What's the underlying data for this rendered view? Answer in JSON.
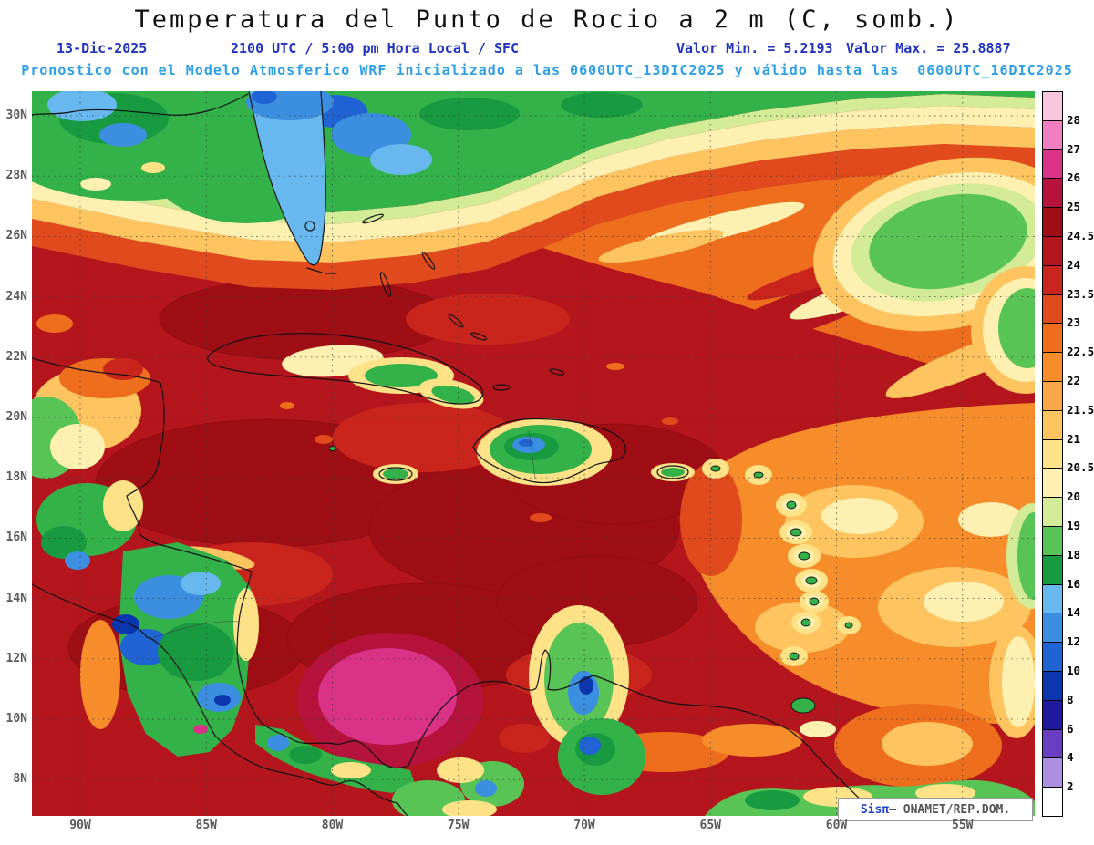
{
  "header": {
    "title": "Temperatura del Punto de Rocio a 2 m (C, somb.)",
    "line2": {
      "date": "13-Dic-2025",
      "time": "2100 UTC / 5:00 pm Hora Local / SFC",
      "min": "Valor Min. = 5.2193",
      "max": "Valor Max. = 25.8887"
    },
    "line3": "Pronostico con el Modelo Atmosferico WRF inicializado a las 0600UTC_13DIC2025 y válido hasta las  0600UTC_16DIC2025"
  },
  "axes": {
    "lat_labels": [
      "30N",
      "28N",
      "26N",
      "24N",
      "22N",
      "20N",
      "18N",
      "16N",
      "14N",
      "12N",
      "10N",
      "8N"
    ],
    "lon_labels": [
      "90W",
      "85W",
      "80W",
      "75W",
      "70W",
      "65W",
      "60W",
      "55W"
    ]
  },
  "colorbar": {
    "labels": [
      "28",
      "27",
      "26",
      "25",
      "24.5",
      "24",
      "23.5",
      "23",
      "22.5",
      "22",
      "21.5",
      "21",
      "20.5",
      "20",
      "19",
      "18",
      "16",
      "14",
      "12",
      "10",
      "8",
      "6",
      "4",
      "2"
    ],
    "colors": [
      "#f9c6e0",
      "#f07ec0",
      "#d93287",
      "#b5123c",
      "#9e0e14",
      "#b5161d",
      "#c9251d",
      "#e04a1c",
      "#ef6e1e",
      "#f68c2a",
      "#fba648",
      "#fdc45f",
      "#fee287",
      "#fef0b0",
      "#d3ea96",
      "#58c455",
      "#189a40",
      "#66b8ee",
      "#3c8fe0",
      "#1f63d4",
      "#0a36b0",
      "#201a9e",
      "#6a3ec0",
      "#ab8fe0",
      "#ffffff"
    ]
  },
  "watermark": {
    "brand": "Sisπ",
    "rest": "– ONAMET/REP.DOM."
  },
  "chart_data": {
    "type": "heatmap",
    "title": "Temperatura del Punto de Rocio a 2 m (C, somb.)",
    "valid_time": "13-Dic-2025 2100 UTC / 5:00 pm Hora Local / SFC",
    "model_info": "Pronostico con el Modelo Atmosferico WRF inicializado a las 0600UTC_13DIC2025 y válido hasta las 0600UTC_16DIC2025",
    "value_min": 5.2193,
    "value_max": 25.8887,
    "lat_ticks": [
      "30N",
      "28N",
      "26N",
      "24N",
      "22N",
      "20N",
      "18N",
      "16N",
      "14N",
      "12N",
      "10N",
      "8N"
    ],
    "lon_ticks": [
      "90W",
      "85W",
      "80W",
      "75W",
      "70W",
      "65W",
      "60W",
      "55W"
    ],
    "scale_levels_c": [
      28,
      27,
      26,
      25,
      24.5,
      24,
      23.5,
      23,
      22.5,
      22,
      21.5,
      21,
      20.5,
      20,
      19,
      18,
      16,
      14,
      12,
      10,
      8,
      6,
      4,
      2
    ],
    "scale_colors": [
      "#f9c6e0",
      "#f07ec0",
      "#d93287",
      "#b5123c",
      "#9e0e14",
      "#b5161d",
      "#c9251d",
      "#e04a1c",
      "#ef6e1e",
      "#f68c2a",
      "#fba648",
      "#fdc45f",
      "#fee287",
      "#fef0b0",
      "#d3ea96",
      "#58c455",
      "#189a40",
      "#66b8ee",
      "#3c8fe0",
      "#1f63d4",
      "#0a36b0",
      "#201a9e",
      "#6a3ec0",
      "#ab8fe0",
      "#ffffff"
    ],
    "legend_position": "right",
    "grid": true
  }
}
